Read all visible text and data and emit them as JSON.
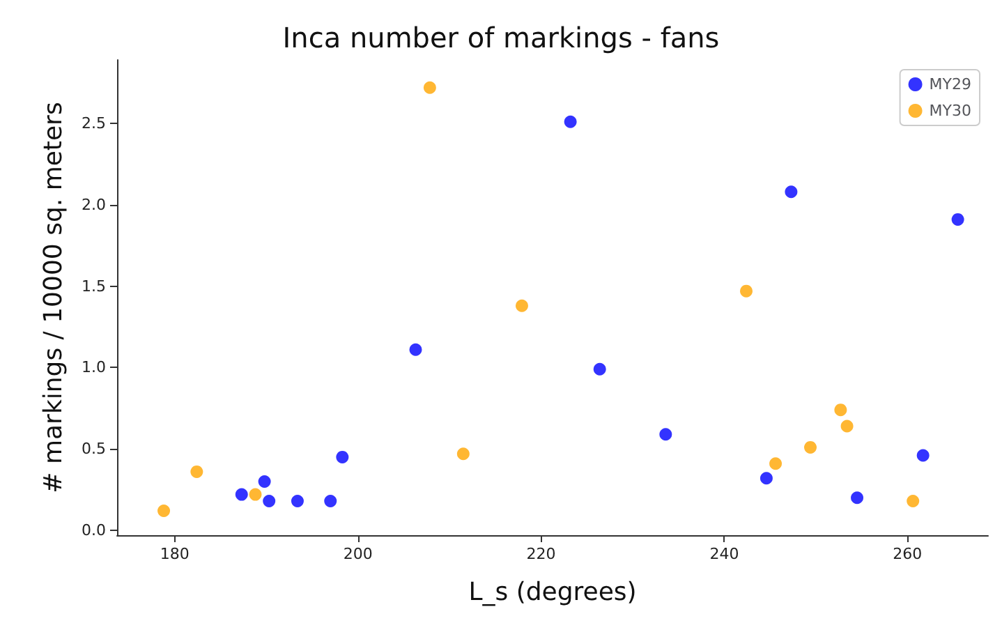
{
  "chart_data": {
    "type": "scatter",
    "title": "Inca number of markings - fans",
    "xlabel": "L_s (degrees)",
    "ylabel": "# markings / 10000 sq. meters",
    "xlim": [
      173.7,
      268.8
    ],
    "xticks": [
      180,
      200,
      220,
      240,
      260
    ],
    "ylim": [
      -0.03,
      2.89
    ],
    "yticks": [
      {
        "value": 0,
        "label": "0.0"
      },
      {
        "value": 0.5,
        "label": "0.5"
      },
      {
        "value": 1,
        "label": "1.0"
      },
      {
        "value": 1.5,
        "label": "1.5"
      },
      {
        "value": 2,
        "label": "2.0"
      },
      {
        "value": 2.5,
        "label": "2.5"
      }
    ],
    "grid": false,
    "legend": "top right",
    "marker": "circle",
    "series": [
      {
        "name": "MY29",
        "color": "#0000ff",
        "x": [
          206.3,
          198.3,
          189.8,
          187.3,
          190.3,
          193.4,
          197.0,
          223.2,
          247.3,
          265.5,
          226.4,
          233.6,
          244.6,
          254.5,
          261.7
        ],
        "values": [
          1.11,
          0.45,
          0.3,
          0.22,
          0.18,
          0.18,
          0.18,
          2.51,
          2.08,
          1.91,
          0.99,
          0.59,
          0.32,
          0.2,
          0.46
        ]
      },
      {
        "name": "MY30",
        "color": "#ffa500",
        "x": [
          207.85,
          217.9,
          211.5,
          182.4,
          178.8,
          188.8,
          242.4,
          245.6,
          249.4,
          252.7,
          253.4,
          260.6
        ],
        "values": [
          2.72,
          1.38,
          0.47,
          0.36,
          0.12,
          0.22,
          1.47,
          0.41,
          0.51,
          0.74,
          0.64,
          0.18
        ]
      }
    ]
  }
}
